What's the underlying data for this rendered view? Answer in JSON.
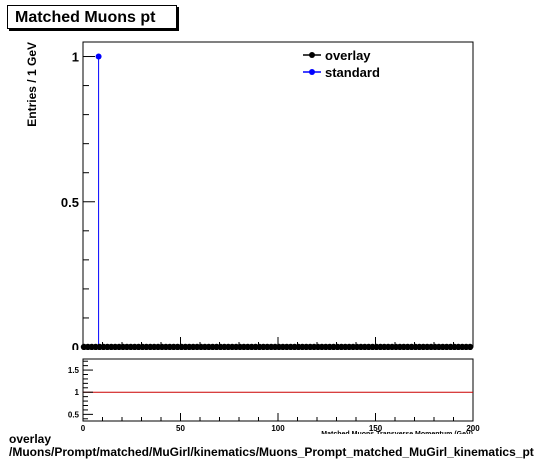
{
  "title": "Matched Muons pt",
  "caption_line1": "overlay",
  "caption_line2": "/Muons/Prompt/matched/MuGirl/kinematics/Muons_Prompt_matched_MuGirl_kinematics_pt",
  "chart_data": [
    {
      "type": "scatter",
      "ylabel": "Entries / 1 GeV",
      "xlim": [
        0,
        200
      ],
      "ylim": [
        0,
        1.05
      ],
      "yticks": [
        0,
        0.5,
        1
      ],
      "ytick_labels": [
        "0",
        "0.5",
        "1"
      ],
      "legend_position": "top-right",
      "series": [
        {
          "name": "overlay",
          "color": "#000000",
          "x_start": 0.5,
          "x_step": 2,
          "count": 100,
          "y": 0
        },
        {
          "name": "standard",
          "color": "#0000ff",
          "x": [
            8
          ],
          "values": [
            1
          ],
          "baseline": 0
        }
      ]
    },
    {
      "type": "line",
      "xlabel": "Matched Muons Transverse Momentum (GeV)",
      "xlim": [
        0,
        200
      ],
      "ylim": [
        0.35,
        1.75
      ],
      "xticks": [
        0,
        50,
        100,
        150,
        200
      ],
      "xtick_labels": [
        "0",
        "50",
        "100",
        "150",
        "200"
      ],
      "yticks": [
        0.5,
        1,
        1.5
      ],
      "ytick_labels": [
        "0.5",
        "1",
        "1.5"
      ],
      "reference_line": 1,
      "reference_color": "#cc0000"
    }
  ]
}
